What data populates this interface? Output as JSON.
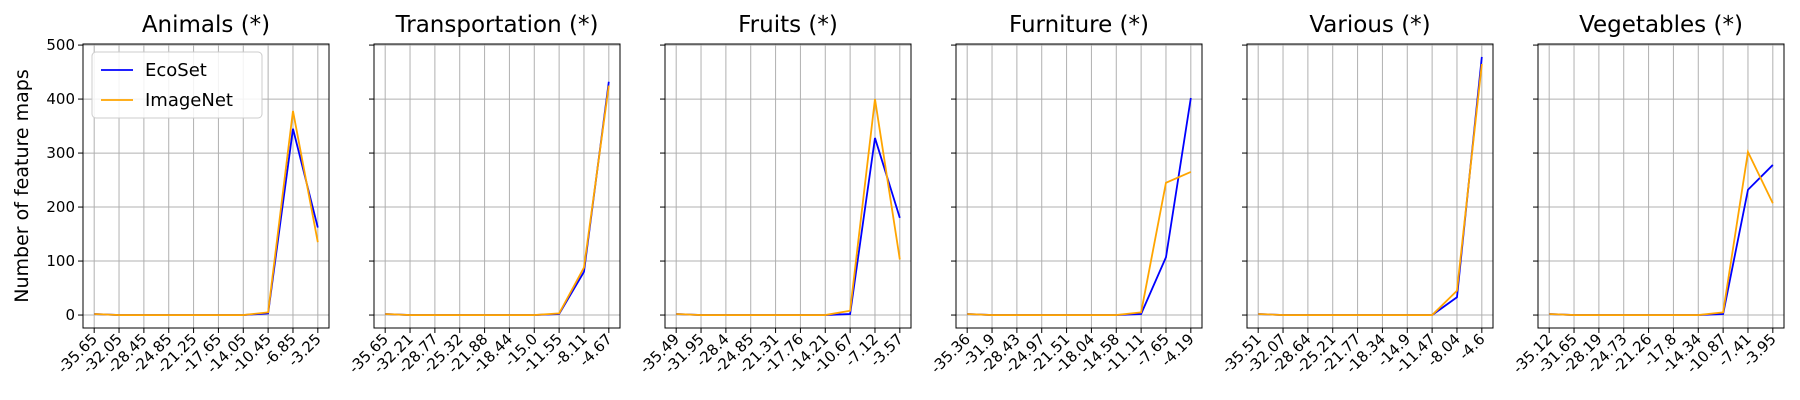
{
  "chart_data": [
    {
      "type": "line",
      "title": "Animals (*)",
      "ylabel": "Number of feature maps",
      "legend": "upper left",
      "categories": [
        "-35.65",
        "-32.05",
        "-28.45",
        "-24.85",
        "-21.25",
        "-17.65",
        "-14.05",
        "-10.45",
        "-6.85",
        "-3.25"
      ],
      "series": [
        {
          "name": "EcoSet",
          "color": "#0000ff",
          "values": [
            2,
            0,
            0,
            0,
            0,
            0,
            0,
            3,
            345,
            162
          ]
        },
        {
          "name": "ImageNet",
          "color": "#ffa500",
          "values": [
            2,
            0,
            0,
            0,
            0,
            0,
            0,
            5,
            378,
            135
          ]
        }
      ],
      "ylim": [
        -24,
        502
      ],
      "yticks": [
        0,
        100,
        200,
        300,
        400,
        500
      ],
      "grid": true
    },
    {
      "type": "line",
      "title": "Transportation (*)",
      "categories": [
        "-35.65",
        "-32.21",
        "-28.77",
        "-25.32",
        "-21.88",
        "-18.44",
        "-15.0",
        "-11.55",
        "-8.11",
        "-4.67"
      ],
      "series": [
        {
          "color": "#0000ff",
          "values": [
            2,
            0,
            0,
            0,
            0,
            0,
            0,
            2,
            80,
            432
          ]
        },
        {
          "color": "#ffa500",
          "values": [
            2,
            0,
            0,
            0,
            0,
            0,
            0,
            3,
            88,
            425
          ]
        }
      ],
      "ylim": [
        -24,
        502
      ],
      "yticks": [
        0,
        100,
        200,
        300,
        400,
        500
      ],
      "grid": true
    },
    {
      "type": "line",
      "title": "Fruits (*)",
      "categories": [
        "-35.49",
        "-31.95",
        "-28.4",
        "-24.85",
        "-21.31",
        "-17.76",
        "-14.21",
        "-10.67",
        "-7.12",
        "-3.57"
      ],
      "series": [
        {
          "color": "#0000ff",
          "values": [
            2,
            0,
            0,
            0,
            0,
            0,
            0,
            2,
            328,
            180
          ]
        },
        {
          "color": "#ffa500",
          "values": [
            2,
            0,
            0,
            0,
            0,
            0,
            0,
            8,
            400,
            103
          ]
        }
      ],
      "ylim": [
        -24,
        502
      ],
      "yticks": [
        0,
        100,
        200,
        300,
        400,
        500
      ],
      "grid": true
    },
    {
      "type": "line",
      "title": "Furniture (*)",
      "categories": [
        "-35.36",
        "-31.9",
        "-28.43",
        "-24.97",
        "-21.51",
        "-18.04",
        "-14.58",
        "-11.11",
        "-7.65",
        "-4.19"
      ],
      "series": [
        {
          "color": "#0000ff",
          "values": [
            2,
            0,
            0,
            0,
            0,
            0,
            0,
            2,
            107,
            402
          ]
        },
        {
          "color": "#ffa500",
          "values": [
            2,
            0,
            0,
            0,
            0,
            0,
            0,
            5,
            245,
            265
          ]
        }
      ],
      "ylim": [
        -24,
        502
      ],
      "yticks": [
        0,
        100,
        200,
        300,
        400,
        500
      ],
      "grid": true
    },
    {
      "type": "line",
      "title": "Various (*)",
      "categories": [
        "-35.51",
        "-32.07",
        "-28.64",
        "-25.21",
        "-21.77",
        "-18.34",
        "-14.9",
        "-11.47",
        "-8.04",
        "-4.6"
      ],
      "series": [
        {
          "color": "#0000ff",
          "values": [
            2,
            0,
            0,
            0,
            0,
            0,
            0,
            0,
            33,
            478
          ]
        },
        {
          "color": "#ffa500",
          "values": [
            2,
            0,
            0,
            0,
            0,
            0,
            0,
            0,
            45,
            465
          ]
        }
      ],
      "ylim": [
        -24,
        502
      ],
      "yticks": [
        0,
        100,
        200,
        300,
        400,
        500
      ],
      "grid": true
    },
    {
      "type": "line",
      "title": "Vegetables (*)",
      "categories": [
        "-35.12",
        "-31.65",
        "-28.19",
        "-24.73",
        "-21.26",
        "-17.8",
        "-14.34",
        "-10.87",
        "-7.41",
        "-3.95"
      ],
      "series": [
        {
          "color": "#0000ff",
          "values": [
            2,
            0,
            0,
            0,
            0,
            0,
            0,
            2,
            232,
            278
          ]
        },
        {
          "color": "#ffa500",
          "values": [
            2,
            0,
            0,
            0,
            0,
            0,
            0,
            5,
            302,
            207
          ]
        }
      ],
      "ylim": [
        -24,
        502
      ],
      "yticks": [
        0,
        100,
        200,
        300,
        400,
        500
      ],
      "grid": true
    }
  ]
}
